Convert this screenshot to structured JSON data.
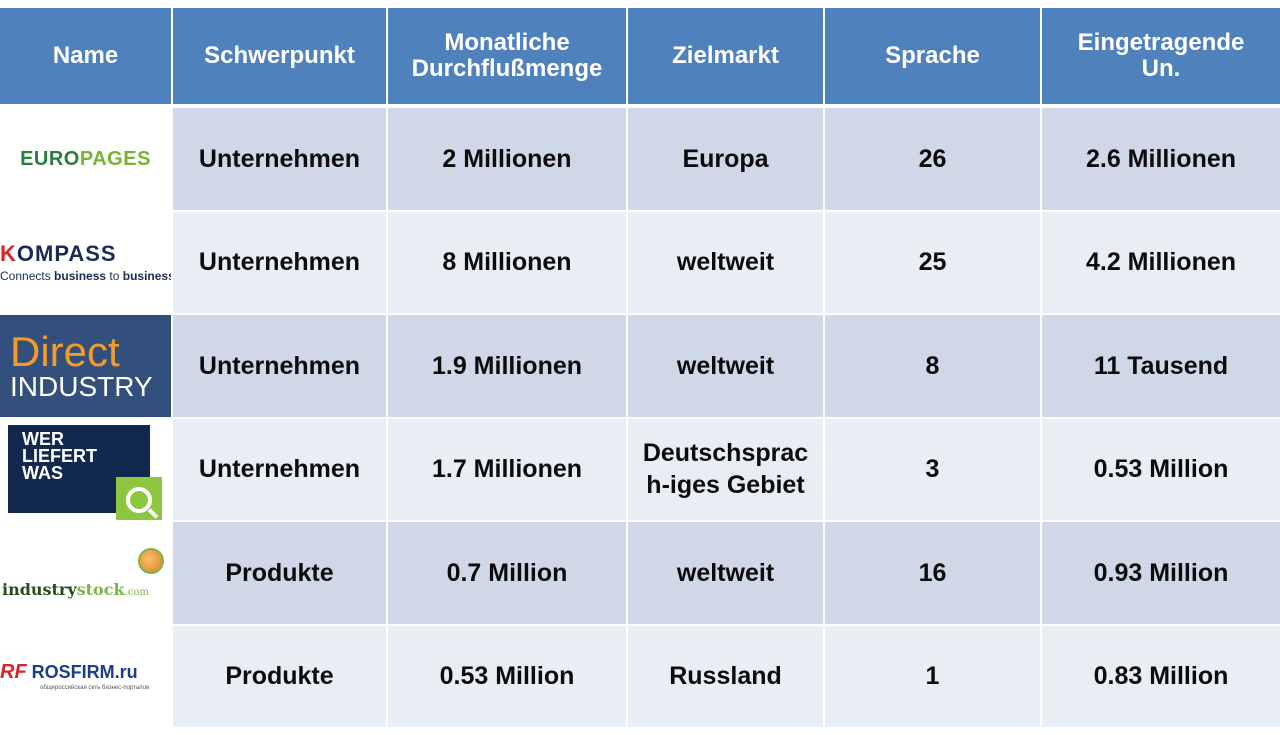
{
  "headers": [
    "Name",
    "Schwerpunkt",
    "Monatliche\nDurchflußmenge",
    "Zielmarkt",
    "Sprache",
    "Eingetragende\nUn."
  ],
  "logos": {
    "europages": {
      "part1": "EURO",
      "part2": "PAGES"
    },
    "kompass": {
      "first": "K",
      "rest": "OMPASS",
      "tag_a": "Connects ",
      "tag_b": "business",
      "tag_c": " to ",
      "tag_d": "business"
    },
    "direct": {
      "line1": "Direct",
      "line2": "INDUSTRY"
    },
    "wlw": {
      "l1": "WER",
      "l2": "LIEFERT",
      "l3": "WAS"
    },
    "industrystock": {
      "a": "industry",
      "b": "stock",
      "c": ".com"
    },
    "rosfirm": {
      "rf": "RF",
      "name": " ROSFIRM.ru",
      "sub": "общероссийская сеть бизнес-порталов"
    }
  },
  "rows": [
    {
      "focus": "Unternehmen",
      "traffic": "2 Millionen",
      "market": "Europa",
      "languages": "26",
      "registered": "2.6 Millionen"
    },
    {
      "focus": "Unternehmen",
      "traffic": "8 Millionen",
      "market": "weltweit",
      "languages": "25",
      "registered": "4.2 Millionen"
    },
    {
      "focus": "Unternehmen",
      "traffic": "1.9 Millionen",
      "market": "weltweit",
      "languages": "8",
      "registered": "11 Tausend"
    },
    {
      "focus": "Unternehmen",
      "traffic": "1.7 Millionen",
      "market": "Deutschsprac\nh-iges Gebiet",
      "languages": "3",
      "registered": "0.53 Million"
    },
    {
      "focus": "Produkte",
      "traffic": "0.7 Million",
      "market": "weltweit",
      "languages": "16",
      "registered": "0.93 Million"
    },
    {
      "focus": "Produkte",
      "traffic": "0.53 Million",
      "market": "Russland",
      "languages": "1",
      "registered": "0.83 Million"
    }
  ]
}
